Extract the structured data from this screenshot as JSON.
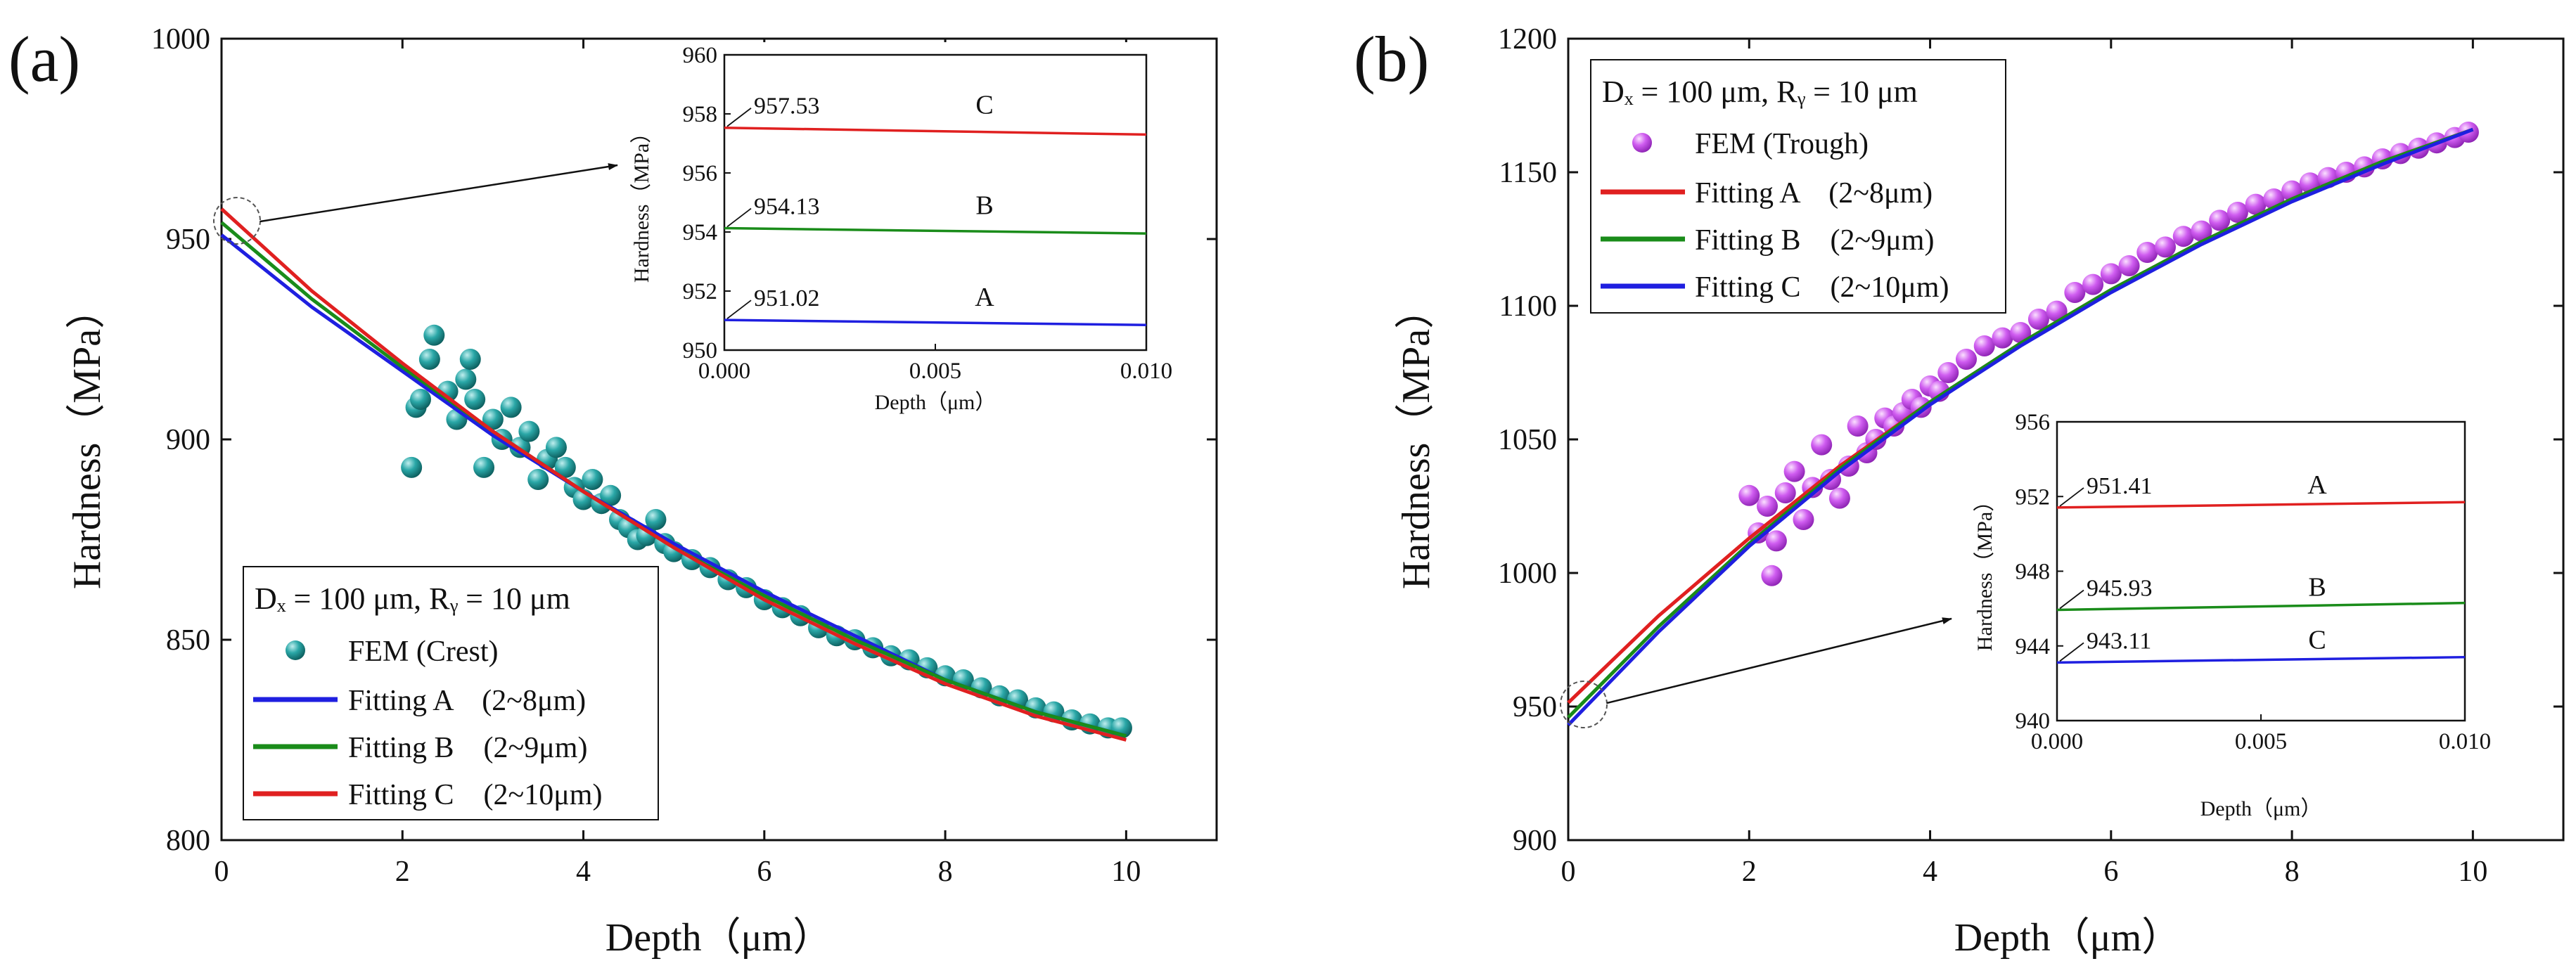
{
  "chart_data": [
    {
      "type": "scatter",
      "panel_label": "(a)",
      "xlabel": "Depth（μm）",
      "ylabel": "Hardness（MPa）",
      "xlim": [
        0,
        11
      ],
      "ylim": [
        800,
        1000
      ],
      "xticks": [
        "0",
        "2",
        "4",
        "6",
        "8",
        "10"
      ],
      "yticks": [
        "800",
        "850",
        "900",
        "950",
        "1000"
      ],
      "legend_title": "Dₓ = 100 μm, Rᵧ = 10 μm",
      "legend_placement": "bottom-left",
      "series": [
        {
          "name": "FEM (Crest)",
          "kind": "scatter",
          "color": "#1a8c8c",
          "x": [
            2.1,
            2.15,
            2.2,
            2.3,
            2.35,
            2.5,
            2.6,
            2.7,
            2.75,
            2.8,
            2.9,
            3.0,
            3.1,
            3.2,
            3.3,
            3.4,
            3.5,
            3.6,
            3.7,
            3.8,
            3.9,
            4.0,
            4.1,
            4.2,
            4.3,
            4.4,
            4.5,
            4.6,
            4.7,
            4.8,
            4.9,
            5.0,
            5.2,
            5.4,
            5.6,
            5.8,
            6.0,
            6.2,
            6.4,
            6.6,
            6.8,
            7.0,
            7.2,
            7.4,
            7.6,
            7.8,
            8.0,
            8.2,
            8.4,
            8.6,
            8.8,
            9.0,
            9.2,
            9.4,
            9.6,
            9.8,
            9.95
          ],
          "y": [
            893,
            908,
            910,
            920,
            926,
            912,
            905,
            915,
            920,
            910,
            893,
            905,
            900,
            908,
            898,
            902,
            890,
            895,
            898,
            893,
            888,
            885,
            890,
            884,
            886,
            880,
            878,
            875,
            876,
            880,
            874,
            872,
            870,
            868,
            865,
            863,
            860,
            858,
            856,
            853,
            851,
            850,
            848,
            846,
            845,
            843,
            841,
            840,
            838,
            836,
            835,
            833,
            832,
            830,
            829,
            828,
            828
          ]
        },
        {
          "name": "Fitting A　(2~8μm)",
          "kind": "line",
          "color": "#1f1fe0",
          "x": [
            0,
            1,
            2,
            3,
            4,
            5,
            6,
            7,
            8,
            9,
            10
          ],
          "y": [
            951.02,
            933,
            917,
            901,
            887,
            874,
            862,
            851,
            840,
            832,
            826
          ]
        },
        {
          "name": "Fitting B　(2~9μm)",
          "kind": "line",
          "color": "#1a8c1a",
          "x": [
            0,
            1,
            2,
            3,
            4,
            5,
            6,
            7,
            8,
            9,
            10
          ],
          "y": [
            954.13,
            935,
            918,
            902,
            887,
            873,
            861,
            850,
            840,
            832,
            826
          ]
        },
        {
          "name": "Fitting C　(2~10μm)",
          "kind": "line",
          "color": "#e02020",
          "x": [
            0,
            1,
            2,
            3,
            4,
            5,
            6,
            7,
            8,
            9,
            10
          ],
          "y": [
            957.53,
            937,
            919,
            902,
            887,
            873,
            860,
            849,
            839,
            831,
            825
          ]
        }
      ],
      "inset": {
        "xlabel": "Depth（μm）",
        "ylabel": "Hardness（MPa）",
        "xlim": [
          0,
          0.01
        ],
        "ylim": [
          950,
          960
        ],
        "xticks": [
          "0.000",
          "0.005",
          "0.010"
        ],
        "yticks": [
          "950",
          "952",
          "954",
          "956",
          "958",
          "960"
        ],
        "lines": [
          {
            "name": "C",
            "value_label": "957.53",
            "color": "#e02020",
            "y0": 957.53,
            "y1": 957.3
          },
          {
            "name": "B",
            "value_label": "954.13",
            "color": "#1a8c1a",
            "y0": 954.13,
            "y1": 953.95
          },
          {
            "name": "A",
            "value_label": "951.02",
            "color": "#1f1fe0",
            "y0": 951.02,
            "y1": 950.85
          }
        ]
      }
    },
    {
      "type": "scatter",
      "panel_label": "(b)",
      "xlabel": "Depth（μm）",
      "ylabel": "Hardness（MPa）",
      "xlim": [
        0,
        11
      ],
      "ylim": [
        900,
        1200
      ],
      "xticks": [
        "0",
        "2",
        "4",
        "6",
        "8",
        "10"
      ],
      "yticks": [
        "900",
        "950",
        "1000",
        "1050",
        "1100",
        "1150",
        "1200"
      ],
      "legend_title": "Dₓ = 100 μm, Rᵧ = 10 μm",
      "legend_placement": "top-left",
      "series": [
        {
          "name": "FEM (Trough)",
          "kind": "scatter",
          "color": "#c040e8",
          "x": [
            2.0,
            2.1,
            2.2,
            2.25,
            2.3,
            2.4,
            2.5,
            2.6,
            2.7,
            2.8,
            2.9,
            3.0,
            3.1,
            3.2,
            3.3,
            3.4,
            3.5,
            3.6,
            3.7,
            3.8,
            3.9,
            4.0,
            4.1,
            4.2,
            4.4,
            4.6,
            4.8,
            5.0,
            5.2,
            5.4,
            5.6,
            5.8,
            6.0,
            6.2,
            6.4,
            6.6,
            6.8,
            7.0,
            7.2,
            7.4,
            7.6,
            7.8,
            8.0,
            8.2,
            8.4,
            8.6,
            8.8,
            9.0,
            9.2,
            9.4,
            9.6,
            9.8,
            9.95
          ],
          "y": [
            1029,
            1015,
            1025,
            999,
            1012,
            1030,
            1038,
            1020,
            1032,
            1048,
            1035,
            1028,
            1040,
            1055,
            1045,
            1050,
            1058,
            1055,
            1060,
            1065,
            1062,
            1070,
            1068,
            1075,
            1080,
            1085,
            1088,
            1090,
            1095,
            1098,
            1105,
            1108,
            1112,
            1115,
            1120,
            1122,
            1126,
            1128,
            1132,
            1135,
            1138,
            1140,
            1143,
            1146,
            1148,
            1150,
            1152,
            1155,
            1157,
            1159,
            1161,
            1163,
            1165
          ]
        },
        {
          "name": "Fitting A　(2~8μm)",
          "kind": "line",
          "color": "#e02020",
          "x": [
            0,
            1,
            2,
            3,
            4,
            5,
            6,
            7,
            8,
            9,
            10
          ],
          "y": [
            951.41,
            984,
            1013,
            1040,
            1064,
            1086,
            1106,
            1124,
            1140,
            1154,
            1166
          ]
        },
        {
          "name": "Fitting B　(2~9μm)",
          "kind": "line",
          "color": "#1a8c1a",
          "x": [
            0,
            1,
            2,
            3,
            4,
            5,
            6,
            7,
            8,
            9,
            10
          ],
          "y": [
            945.93,
            980,
            1011,
            1039,
            1064,
            1086,
            1106,
            1124,
            1140,
            1154,
            1166
          ]
        },
        {
          "name": "Fitting C　(2~10μm)",
          "kind": "line",
          "color": "#1f1fe0",
          "x": [
            0,
            1,
            2,
            3,
            4,
            5,
            6,
            7,
            8,
            9,
            10
          ],
          "y": [
            943.11,
            978,
            1010,
            1038,
            1063,
            1085,
            1105,
            1123,
            1139,
            1153,
            1166
          ]
        }
      ],
      "inset": {
        "xlabel": "Depth（μm）",
        "ylabel": "Hardness（MPa）",
        "xlim": [
          0,
          0.01
        ],
        "ylim": [
          940,
          956
        ],
        "xticks": [
          "0.000",
          "0.005",
          "0.010"
        ],
        "yticks": [
          "940",
          "944",
          "948",
          "952",
          "956"
        ],
        "lines": [
          {
            "name": "A",
            "value_label": "951.41",
            "color": "#e02020",
            "y0": 951.41,
            "y1": 951.7
          },
          {
            "name": "B",
            "value_label": "945.93",
            "color": "#1a8c1a",
            "y0": 945.93,
            "y1": 946.3
          },
          {
            "name": "C",
            "value_label": "943.11",
            "color": "#1f1fe0",
            "y0": 943.11,
            "y1": 943.4
          }
        ]
      }
    }
  ]
}
